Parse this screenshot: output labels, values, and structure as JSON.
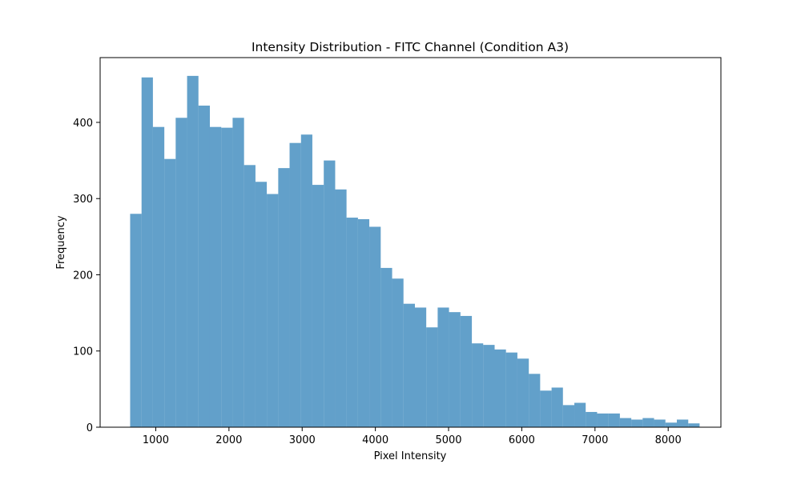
{
  "chart_data": {
    "type": "bar",
    "title": "Intensity Distribution - FITC Channel (Condition A3)",
    "xlabel": "Pixel Intensity",
    "ylabel": "Frequency",
    "xlim": [
      240,
      8720
    ],
    "ylim": [
      0,
      485
    ],
    "x_ticks": [
      1000,
      2000,
      3000,
      4000,
      5000,
      6000,
      7000,
      8000
    ],
    "y_ticks": [
      0,
      100,
      200,
      300,
      400
    ],
    "grid": false,
    "legend": "none",
    "bar_color": "#1f77b4",
    "bar_alpha": 0.7,
    "bin_edges": [
      650,
      806,
      961,
      1117,
      1272,
      1428,
      1583,
      1739,
      1895,
      2050,
      2206,
      2362,
      2517,
      2673,
      2828,
      2984,
      3139,
      3295,
      3451,
      3606,
      3762,
      3917,
      4073,
      4229,
      4384,
      4540,
      4695,
      4851,
      5006,
      5162,
      5318,
      5473,
      5629,
      5784,
      5940,
      6096,
      6251,
      6407,
      6562,
      6718,
      6873,
      7029,
      7185,
      7340,
      7496,
      7651,
      7807,
      7962,
      8118,
      8274,
      8429
    ],
    "values": [
      280,
      459,
      394,
      352,
      406,
      461,
      422,
      394,
      393,
      406,
      344,
      322,
      306,
      340,
      373,
      384,
      318,
      350,
      312,
      275,
      273,
      263,
      209,
      195,
      162,
      157,
      131,
      157,
      151,
      146,
      110,
      108,
      102,
      98,
      90,
      70,
      48,
      52,
      29,
      32,
      20,
      18,
      18,
      12,
      10,
      12,
      10,
      6,
      10,
      5
    ]
  }
}
